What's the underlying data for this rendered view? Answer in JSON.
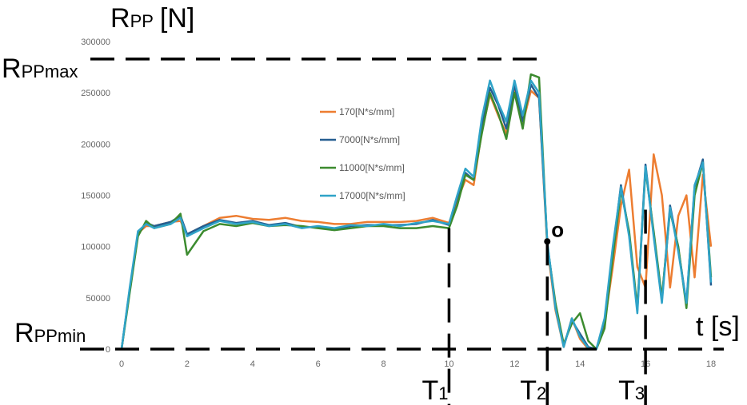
{
  "chart_data": {
    "type": "line",
    "x": [
      0,
      0.25,
      0.5,
      0.75,
      1,
      1.5,
      1.8,
      2,
      2.5,
      3,
      3.5,
      4,
      4.5,
      5,
      5.5,
      6,
      6.5,
      7,
      7.5,
      8,
      8.5,
      9,
      9.5,
      10,
      10.25,
      10.5,
      10.75,
      11,
      11.25,
      11.5,
      11.75,
      12,
      12.25,
      12.5,
      12.75,
      13,
      13.25,
      13.5,
      13.75,
      14,
      14.25,
      14.5,
      14.75,
      15,
      15.25,
      15.5,
      15.75,
      16,
      16.25,
      16.5,
      16.75,
      17,
      17.25,
      17.5,
      17.75,
      18
    ],
    "series": [
      {
        "name": "170[N*s/mm]",
        "color": "#ed7d31",
        "values": [
          0,
          58000,
          113000,
          120000,
          120000,
          124000,
          125000,
          112000,
          120000,
          128000,
          130000,
          127000,
          126000,
          128000,
          125000,
          124000,
          122000,
          122000,
          124000,
          124000,
          124000,
          125000,
          128000,
          123000,
          145000,
          165000,
          160000,
          212000,
          248000,
          228000,
          210000,
          252000,
          220000,
          252000,
          245000,
          100000,
          38000,
          2000,
          30000,
          10000,
          0,
          0,
          25000,
          80000,
          140000,
          175000,
          80000,
          60000,
          190000,
          150000,
          60000,
          130000,
          150000,
          70000,
          170000,
          100000
        ]
      },
      {
        "name": "7000[N*s/mm]",
        "color": "#255e91",
        "values": [
          0,
          58000,
          112000,
          123000,
          120000,
          124000,
          130000,
          112000,
          120000,
          126000,
          123000,
          125000,
          121000,
          123000,
          119000,
          119000,
          117000,
          120000,
          121000,
          121000,
          121000,
          122000,
          126000,
          121000,
          148000,
          172000,
          165000,
          218000,
          255000,
          238000,
          215000,
          258000,
          222000,
          258000,
          245000,
          103000,
          42000,
          3000,
          28000,
          15000,
          2000,
          0,
          28000,
          95000,
          160000,
          112000,
          38000,
          180000,
          112000,
          48000,
          140000,
          98000,
          45000,
          158000,
          185000,
          62000
        ]
      },
      {
        "name": "11000[N*s/mm]",
        "color": "#3c8b2f",
        "values": [
          0,
          55000,
          110000,
          125000,
          118000,
          122000,
          132000,
          92000,
          115000,
          122000,
          120000,
          123000,
          120000,
          121000,
          120000,
          118000,
          116000,
          118000,
          120000,
          120000,
          118000,
          118000,
          120000,
          118000,
          140000,
          170000,
          165000,
          210000,
          250000,
          230000,
          205000,
          250000,
          215000,
          268000,
          265000,
          102000,
          45000,
          5000,
          25000,
          35000,
          8000,
          0,
          20000,
          90000,
          155000,
          115000,
          40000,
          175000,
          115000,
          50000,
          135000,
          100000,
          40000,
          150000,
          182000,
          70000
        ]
      },
      {
        "name": "17000[N*s/mm]",
        "color": "#2fa3c8",
        "values": [
          0,
          60000,
          115000,
          122000,
          118000,
          122000,
          128000,
          110000,
          118000,
          125000,
          122000,
          124000,
          120000,
          122000,
          118000,
          120000,
          118000,
          121000,
          120000,
          122000,
          120000,
          123000,
          125000,
          122000,
          150000,
          176000,
          168000,
          225000,
          262000,
          240000,
          222000,
          262000,
          228000,
          262000,
          250000,
          105000,
          40000,
          2000,
          30000,
          12000,
          1000,
          0,
          30000,
          100000,
          158000,
          110000,
          35000,
          178000,
          110000,
          45000,
          138000,
          95000,
          45000,
          160000,
          182000,
          65000
        ]
      }
    ],
    "xlim": [
      0,
      18
    ],
    "xticks": [
      0,
      2,
      4,
      6,
      8,
      10,
      12,
      14,
      16,
      18
    ],
    "ylim": [
      0,
      300000
    ],
    "yticks": [
      0,
      50000,
      100000,
      150000,
      200000,
      250000,
      300000
    ],
    "annotations": {
      "y_axis_label": {
        "symbol": "R",
        "subscript": "PP",
        "unit": "[N]"
      },
      "max_label": {
        "symbol": "R",
        "subscript": "PPmax",
        "level": 283000,
        "x_end": 13
      },
      "min_label": {
        "symbol": "R",
        "subscript": "PPmin"
      },
      "x_axis_label": "t [s]",
      "point": {
        "label": "o",
        "x": 13,
        "y": 105000
      },
      "time_marks": [
        {
          "symbol": "T",
          "subscript": "1",
          "x": 10,
          "y": 118000
        },
        {
          "symbol": "T",
          "subscript": "2",
          "x": 13,
          "y": 105000
        },
        {
          "symbol": "T",
          "subscript": "3",
          "x": 16,
          "y": 136000
        }
      ]
    }
  }
}
